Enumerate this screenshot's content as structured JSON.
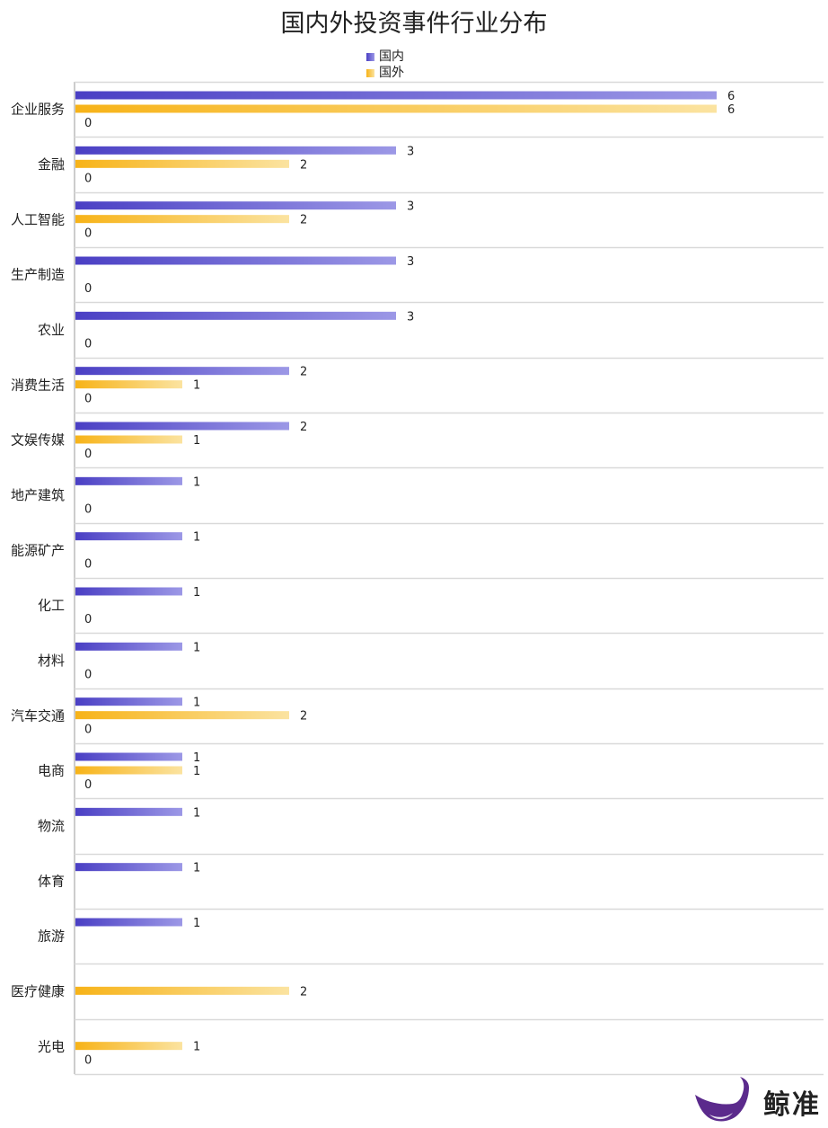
{
  "chart_data": {
    "type": "bar",
    "orientation": "horizontal",
    "title": "国内外投资事件行业分布",
    "legend_position": "top-center",
    "grid": true,
    "xlim": [
      0,
      7
    ],
    "categories": [
      "企业服务",
      "金融",
      "人工智能",
      "生产制造",
      "农业",
      "消费生活",
      "文娱传媒",
      "地产建筑",
      "能源矿产",
      "化工",
      "材料",
      "汽车交通",
      "电商",
      "物流",
      "体育",
      "旅游",
      "医疗健康",
      "光电"
    ],
    "series": [
      {
        "name": "国内",
        "color": "#4a3fc4",
        "color_light": "#9c98e6",
        "values": [
          6,
          3,
          3,
          3,
          3,
          2,
          2,
          1,
          1,
          1,
          1,
          1,
          1,
          1,
          1,
          1,
          null,
          null
        ]
      },
      {
        "name": "国外",
        "color": "#f7b318",
        "color_light": "#fbe3a0",
        "values": [
          6,
          2,
          2,
          null,
          null,
          1,
          1,
          null,
          null,
          null,
          null,
          2,
          1,
          null,
          null,
          null,
          2,
          1
        ]
      },
      {
        "name": "",
        "color": "#cccccc",
        "color_light": "#cccccc",
        "values": [
          0,
          0,
          0,
          0,
          0,
          0,
          0,
          0,
          0,
          0,
          0,
          0,
          0,
          null,
          null,
          null,
          null,
          0
        ]
      }
    ]
  },
  "logo": {
    "text": "鲸准",
    "color": "#5b2a8c"
  }
}
